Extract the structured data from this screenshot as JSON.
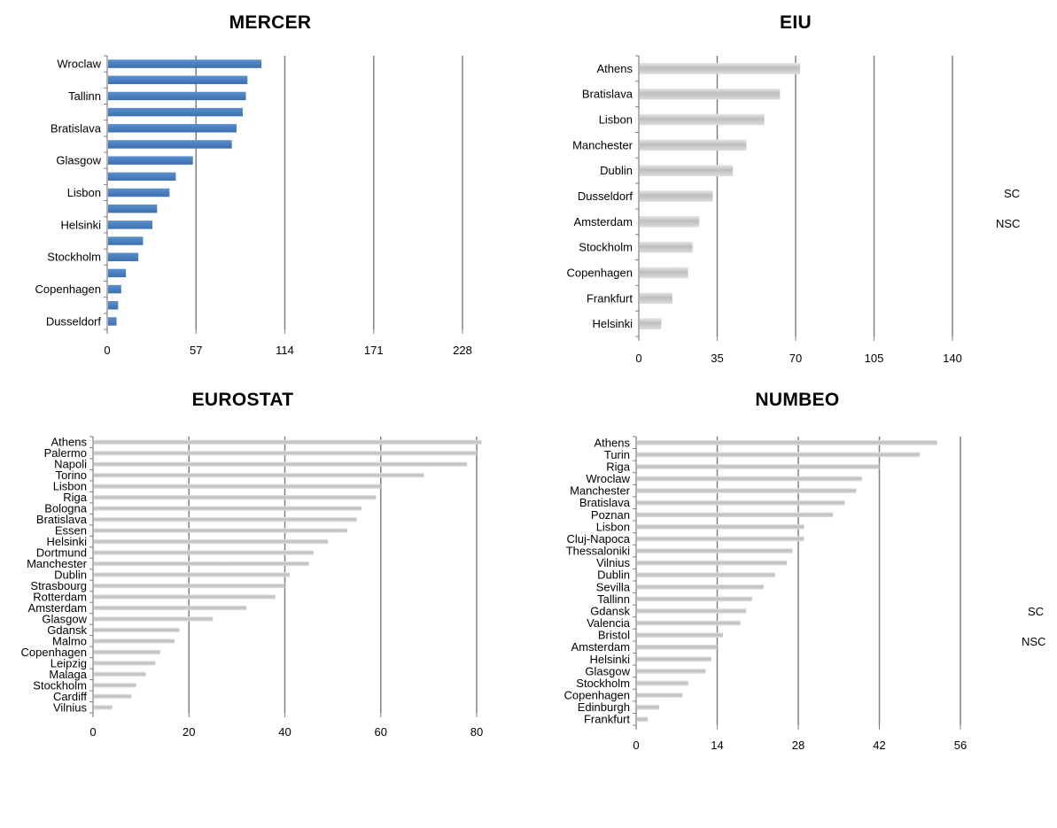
{
  "legend": {
    "top": {
      "items": [
        "SC",
        "NSC"
      ]
    },
    "bottom": {
      "items": [
        "SC",
        "NSC"
      ]
    }
  },
  "colors": {
    "blue_bar": "#4f81bd",
    "grey_bar": "#c8c8c8",
    "axis": "#808080"
  },
  "chart_data": [
    {
      "id": "mercer",
      "type": "bar",
      "orientation": "horizontal",
      "title": "MERCER",
      "bar_color": "blue",
      "xlim": [
        0,
        228
      ],
      "xticks": [
        0,
        57,
        114,
        171,
        228
      ],
      "category_labels": [
        "Wroclaw",
        "",
        "Tallinn",
        "",
        "Bratislava",
        "",
        "Glasgow",
        "",
        "Lisbon",
        "",
        "Helsinki",
        "",
        "Stockholm",
        "",
        "Copenhagen",
        "",
        "Dusseldorf"
      ],
      "values": [
        99,
        90,
        89,
        87,
        83,
        80,
        55,
        44,
        40,
        32,
        29,
        23,
        20,
        12,
        9,
        7,
        6
      ]
    },
    {
      "id": "eiu",
      "type": "bar",
      "orientation": "horizontal",
      "title": "EIU",
      "bar_color": "grey",
      "xlim": [
        0,
        140
      ],
      "xticks": [
        0,
        35,
        70,
        105,
        140
      ],
      "category_labels": [
        "Athens",
        "Bratislava",
        "Lisbon",
        "Manchester",
        "Dublin",
        "Dusseldorf",
        "Amsterdam",
        "Stockholm",
        "Copenhagen",
        "Frankfurt",
        "Helsinki"
      ],
      "values": [
        72,
        63,
        56,
        48,
        42,
        33,
        27,
        24,
        22,
        15,
        10
      ]
    },
    {
      "id": "eurostat",
      "type": "bar",
      "orientation": "horizontal",
      "title": "EUROSTAT",
      "bar_color": "grey",
      "xlim": [
        0,
        80
      ],
      "xticks": [
        0,
        20,
        40,
        60,
        80
      ],
      "category_labels": [
        "Athens",
        "Palermo",
        "Napoli",
        "Torino",
        "Lisbon",
        "Riga",
        "Bologna",
        "Bratislava",
        "Essen",
        "Helsinki",
        "Dortmund",
        "Manchester",
        "Dublin",
        "Strasbourg",
        "Rotterdam",
        "Amsterdam",
        "Glasgow",
        "Gdansk",
        "Malmo",
        "Copenhagen",
        "Leipzig",
        "Malaga",
        "Stockholm",
        "Cardiff",
        "Vilnius"
      ],
      "values": [
        81,
        80,
        78,
        69,
        60,
        59,
        56,
        55,
        53,
        49,
        46,
        45,
        41,
        40,
        38,
        32,
        25,
        18,
        17,
        14,
        13,
        11,
        9,
        8,
        4
      ]
    },
    {
      "id": "numbeo",
      "type": "bar",
      "orientation": "horizontal",
      "title": "NUMBEO",
      "bar_color": "grey",
      "xlim": [
        0,
        56
      ],
      "xticks": [
        0,
        14,
        28,
        42,
        56
      ],
      "category_labels": [
        "Athens",
        "Turin",
        "Riga",
        "Wroclaw",
        "Manchester",
        "Bratislava",
        "Poznan",
        "Lisbon",
        "Cluj-Napoca",
        "Thessaloniki",
        "Vilnius",
        "Dublin",
        "Sevilla",
        "Tallinn",
        "Gdansk",
        "Valencia",
        "Bristol",
        "Amsterdam",
        "Helsinki",
        "Glasgow",
        "Stockholm",
        "Copenhagen",
        "Edinburgh",
        "Frankfurt"
      ],
      "values": [
        52,
        49,
        42,
        39,
        38,
        36,
        34,
        29,
        29,
        27,
        26,
        24,
        22,
        20,
        19,
        18,
        15,
        14,
        13,
        12,
        9,
        8,
        4,
        2
      ]
    }
  ]
}
